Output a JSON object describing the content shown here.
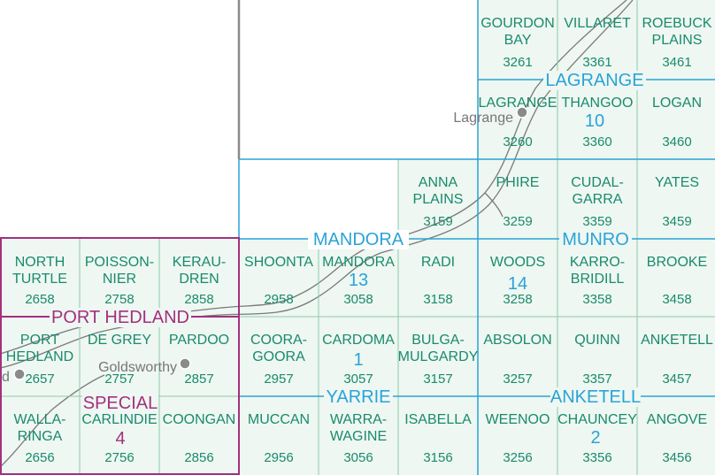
{
  "colors": {
    "cell_text": "#1a8a6e",
    "sheet_blue": "#2aa3d8",
    "sheet_purple": "#a3307f",
    "cell_fill": "#eef7f1",
    "grid_line": "#8ec9ad",
    "road": "#7a7a7a"
  },
  "cells": [
    {
      "id": "3261",
      "lines": [
        "GOURDON",
        "BAY"
      ],
      "number": "3261"
    },
    {
      "id": "3361",
      "lines": [
        "VILLARET"
      ],
      "number": "3361"
    },
    {
      "id": "3461",
      "lines": [
        "ROEBUCK",
        "PLAINS"
      ],
      "number": "3461"
    },
    {
      "id": "3260",
      "lines": [
        "LAGRANGE"
      ],
      "number": "3260"
    },
    {
      "id": "3360",
      "lines": [
        "THANGOO"
      ],
      "number": "3360"
    },
    {
      "id": "3460",
      "lines": [
        "LOGAN"
      ],
      "number": "3460"
    },
    {
      "id": "3159",
      "lines": [
        "ANNA",
        "PLAINS"
      ],
      "number": "3159"
    },
    {
      "id": "3259",
      "lines": [
        "PHIRE"
      ],
      "number": "3259"
    },
    {
      "id": "3359",
      "lines": [
        "CUDAL-",
        "GARRA"
      ],
      "number": "3359"
    },
    {
      "id": "3459",
      "lines": [
        "YATES"
      ],
      "number": "3459"
    },
    {
      "id": "2658",
      "lines": [
        "NORTH",
        "TURTLE"
      ],
      "number": "2658"
    },
    {
      "id": "2758",
      "lines": [
        "POISSON-",
        "NIER"
      ],
      "number": "2758"
    },
    {
      "id": "2858",
      "lines": [
        "KERAU-",
        "DREN"
      ],
      "number": "2858"
    },
    {
      "id": "2958",
      "lines": [
        "SHOONTA"
      ],
      "number": "2958"
    },
    {
      "id": "3058",
      "lines": [
        "MANDORA"
      ],
      "number": "3058"
    },
    {
      "id": "3158",
      "lines": [
        "RADI"
      ],
      "number": "3158"
    },
    {
      "id": "3258",
      "lines": [
        "WOODS"
      ],
      "number": "3258"
    },
    {
      "id": "3358",
      "lines": [
        "KARRO-",
        "BRIDILL"
      ],
      "number": "3358"
    },
    {
      "id": "3458",
      "lines": [
        "BROOKE"
      ],
      "number": "3458"
    },
    {
      "id": "2657",
      "lines": [
        "PORT",
        "HEDLAND"
      ],
      "number": "2657"
    },
    {
      "id": "2757",
      "lines": [
        "DE GREY"
      ],
      "number": "2757"
    },
    {
      "id": "2857",
      "lines": [
        "PARDOO"
      ],
      "number": "2857"
    },
    {
      "id": "2957",
      "lines": [
        "COORA-",
        "GOORA"
      ],
      "number": "2957"
    },
    {
      "id": "3057",
      "lines": [
        "CARDOMA"
      ],
      "number": "3057"
    },
    {
      "id": "3157",
      "lines": [
        "BULGA-",
        "MULGARDY"
      ],
      "number": "3157"
    },
    {
      "id": "3257",
      "lines": [
        "ABSOLON"
      ],
      "number": "3257"
    },
    {
      "id": "3357",
      "lines": [
        "QUINN"
      ],
      "number": "3357"
    },
    {
      "id": "3457",
      "lines": [
        "ANKETELL"
      ],
      "number": "3457"
    },
    {
      "id": "2656",
      "lines": [
        "WALLA-",
        "RINGA"
      ],
      "number": "2656"
    },
    {
      "id": "2756",
      "lines": [
        "CARLINDIE"
      ],
      "number": "2756"
    },
    {
      "id": "2856",
      "lines": [
        "COONGAN"
      ],
      "number": "2856"
    },
    {
      "id": "2956",
      "lines": [
        "MUCCAN"
      ],
      "number": "2956"
    },
    {
      "id": "3056",
      "lines": [
        "WARRA-",
        "WAGINE"
      ],
      "number": "3056"
    },
    {
      "id": "3156",
      "lines": [
        "ISABELLA"
      ],
      "number": "3156"
    },
    {
      "id": "3256",
      "lines": [
        "WEENOO"
      ],
      "number": "3256"
    },
    {
      "id": "3356",
      "lines": [
        "CHAUNCEY"
      ],
      "number": "3356"
    },
    {
      "id": "3456",
      "lines": [
        "ANGOVE"
      ],
      "number": "3456"
    }
  ],
  "sheets": [
    {
      "id": "lagrange",
      "lines": [
        "LAGRANGE"
      ],
      "number": "10",
      "color": "blue"
    },
    {
      "id": "mandora",
      "lines": [
        "MANDORA"
      ],
      "number": "13",
      "color": "blue"
    },
    {
      "id": "munro",
      "lines": [
        "MUNRO"
      ],
      "number": "14",
      "color": "blue"
    },
    {
      "id": "port-hedland",
      "lines": [
        "PORT HEDLAND",
        "SPECIAL"
      ],
      "number": "4",
      "color": "purple"
    },
    {
      "id": "yarrie",
      "lines": [
        "YARRIE"
      ],
      "number": "1",
      "color": "blue"
    },
    {
      "id": "anketell",
      "lines": [
        "ANKETELL"
      ],
      "number": "2",
      "color": "blue"
    }
  ],
  "places": [
    {
      "id": "lagrange",
      "name": "Lagrange"
    },
    {
      "id": "goldsworthy",
      "name": "Goldsworthy"
    },
    {
      "id": "port-hedland-partial",
      "name": "d"
    }
  ]
}
